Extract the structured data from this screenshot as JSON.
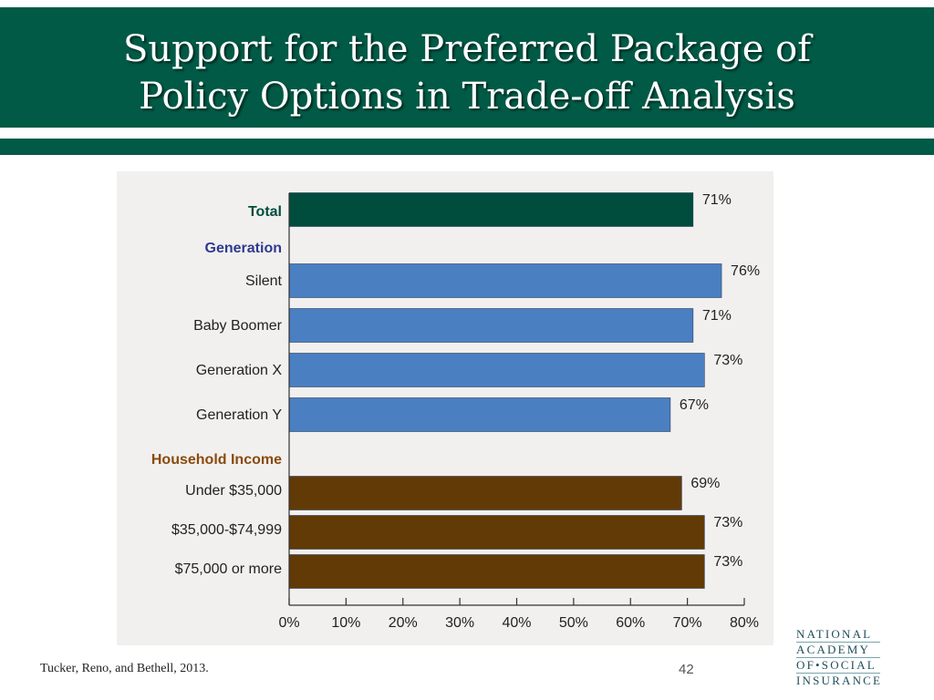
{
  "slide": {
    "title_line1": "Support for the Preferred Package of",
    "title_line2": "Policy Options in Trade-off Analysis",
    "citation": "Tucker, Reno, and Bethell, 2013.",
    "page_number": "42",
    "logo_lines": [
      "NATIONAL",
      "ACADEMY",
      "OF•SOCIAL",
      "INSURANCE"
    ]
  },
  "colors": {
    "header_green": "#005a46",
    "total_bar": "#004d3d",
    "generation_bar": "#4a7fc1",
    "income_bar": "#623a06",
    "generation_heading": "#2f3a8f",
    "income_heading": "#8a4a0c"
  },
  "chart_data": {
    "type": "bar",
    "orientation": "horizontal",
    "xlim": [
      0,
      80
    ],
    "x_ticks": [
      "0%",
      "10%",
      "20%",
      "30%",
      "40%",
      "50%",
      "60%",
      "70%",
      "80%"
    ],
    "groups": [
      {
        "heading": "",
        "rows": [
          {
            "label": "Total",
            "value": 71,
            "value_label": "71%",
            "color_key": "total_bar"
          }
        ]
      },
      {
        "heading": "Generation",
        "heading_color_key": "generation_heading",
        "rows": [
          {
            "label": "Silent",
            "value": 76,
            "value_label": "76%",
            "color_key": "generation_bar"
          },
          {
            "label": "Baby Boomer",
            "value": 71,
            "value_label": "71%",
            "color_key": "generation_bar"
          },
          {
            "label": "Generation X",
            "value": 73,
            "value_label": "73%",
            "color_key": "generation_bar"
          },
          {
            "label": "Generation Y",
            "value": 67,
            "value_label": "67%",
            "color_key": "generation_bar"
          }
        ]
      },
      {
        "heading": "Household Income",
        "heading_color_key": "income_heading",
        "rows": [
          {
            "label": "Under $35,000",
            "value": 69,
            "value_label": "69%",
            "color_key": "income_bar"
          },
          {
            "label": "$35,000-$74,999",
            "value": 73,
            "value_label": "73%",
            "color_key": "income_bar"
          },
          {
            "label": "$75,000 or more",
            "value": 73,
            "value_label": "73%",
            "color_key": "income_bar"
          }
        ]
      }
    ],
    "grid": false,
    "legend": "none"
  }
}
